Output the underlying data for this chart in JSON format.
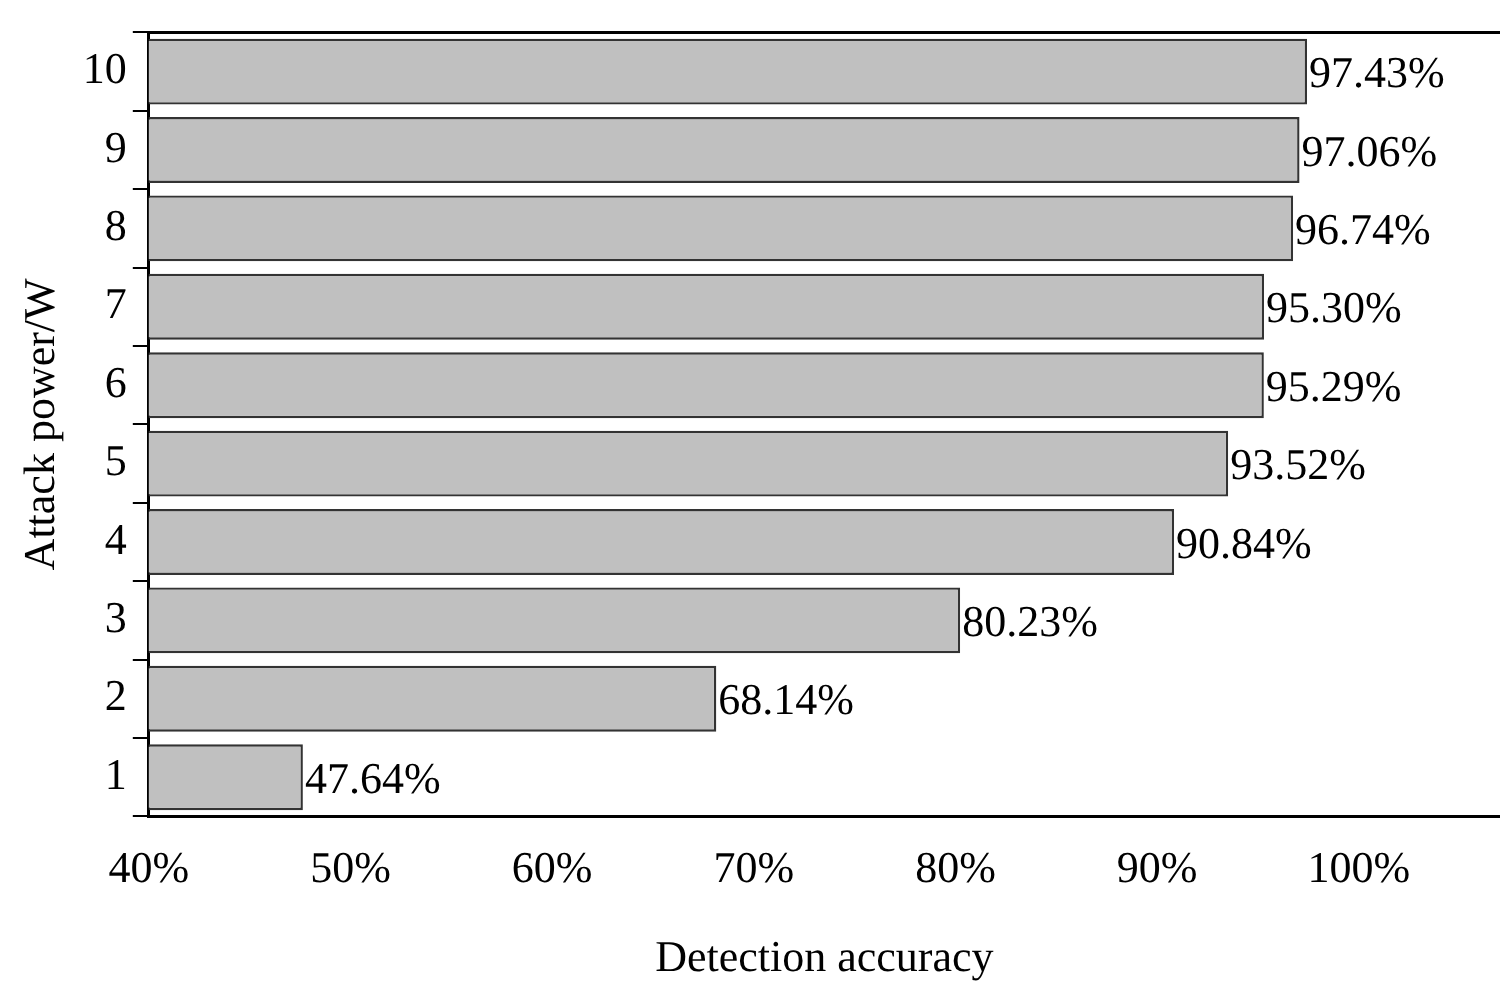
{
  "chart_data": {
    "type": "bar",
    "orientation": "horizontal",
    "xlabel": "Detection accuracy",
    "ylabel": "Attack power/W",
    "categories": [
      "10",
      "9",
      "8",
      "7",
      "6",
      "5",
      "4",
      "3",
      "2",
      "1"
    ],
    "values": [
      97.43,
      97.06,
      96.74,
      95.3,
      95.29,
      93.52,
      90.84,
      80.23,
      68.14,
      47.64
    ],
    "value_labels": [
      "97.43%",
      "97.06%",
      "96.74%",
      "95.30%",
      "95.29%",
      "93.52%",
      "90.84%",
      "80.23%",
      "68.14%",
      "47.64%"
    ],
    "color": "#c0c0c0",
    "xlim": [
      40,
      107
    ],
    "xticks": [
      {
        "value": 40,
        "label": "40%"
      },
      {
        "value": 50,
        "label": "50%"
      },
      {
        "value": 60,
        "label": "60%"
      },
      {
        "value": 70,
        "label": "70%"
      },
      {
        "value": 80,
        "label": "80%"
      },
      {
        "value": 90,
        "label": "90%"
      },
      {
        "value": 100,
        "label": "100%"
      }
    ],
    "grid": false,
    "legend": false
  }
}
